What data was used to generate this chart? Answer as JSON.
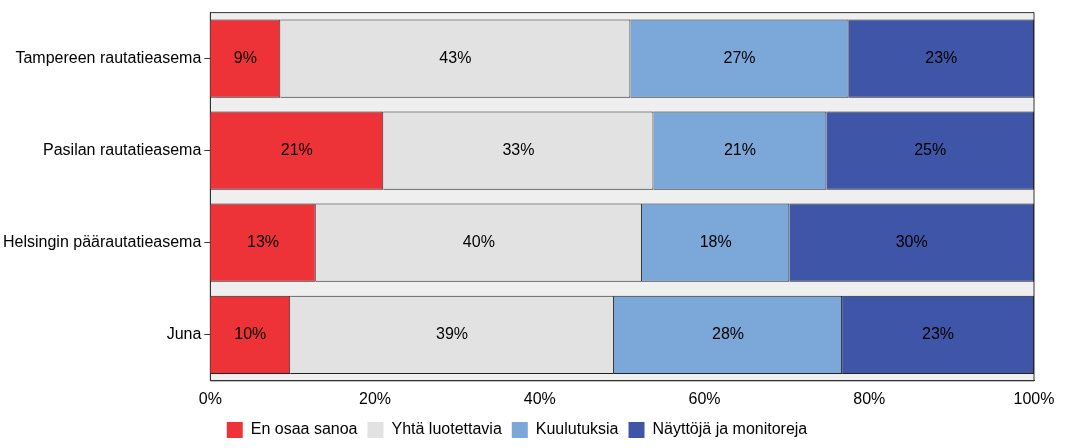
{
  "chart_data": {
    "type": "bar",
    "orientation": "horizontal",
    "stacked": true,
    "categories": [
      "Tampereen rautatieasema",
      "Pasilan rautatieasema",
      "Helsingin päärautatieasema",
      "Juna"
    ],
    "series": [
      {
        "name": "En osaa sanoa",
        "color": "#ee3338",
        "values": [
          8.5,
          21.0,
          12.8,
          9.7
        ],
        "value_labels": [
          "9%",
          "21%",
          "13%",
          "10%"
        ]
      },
      {
        "name": "Yhtä luotettavia",
        "color": "#e2e2e2",
        "values": [
          42.5,
          32.8,
          39.6,
          39.3
        ],
        "value_labels": [
          "43%",
          "33%",
          "40%",
          "39%"
        ]
      },
      {
        "name": "Kuulutuksia",
        "color": "#7ba7d9",
        "values": [
          26.5,
          21.0,
          17.9,
          27.7
        ],
        "value_labels": [
          "27%",
          "21%",
          "18%",
          "28%"
        ]
      },
      {
        "name": "Näyttöjä ja monitoreja",
        "color": "#3f56a8",
        "values": [
          22.5,
          25.2,
          29.7,
          23.3
        ],
        "value_labels": [
          "23%",
          "25%",
          "30%",
          "23%"
        ]
      }
    ],
    "xlim": [
      0,
      100
    ],
    "xticks": [
      {
        "value": 0,
        "label": "0%"
      },
      {
        "value": 20,
        "label": "20%"
      },
      {
        "value": 40,
        "label": "40%"
      },
      {
        "value": 60,
        "label": "60%"
      },
      {
        "value": 80,
        "label": "80%"
      },
      {
        "value": 100,
        "label": "100%"
      }
    ],
    "grid": false,
    "legend": "bottom"
  }
}
